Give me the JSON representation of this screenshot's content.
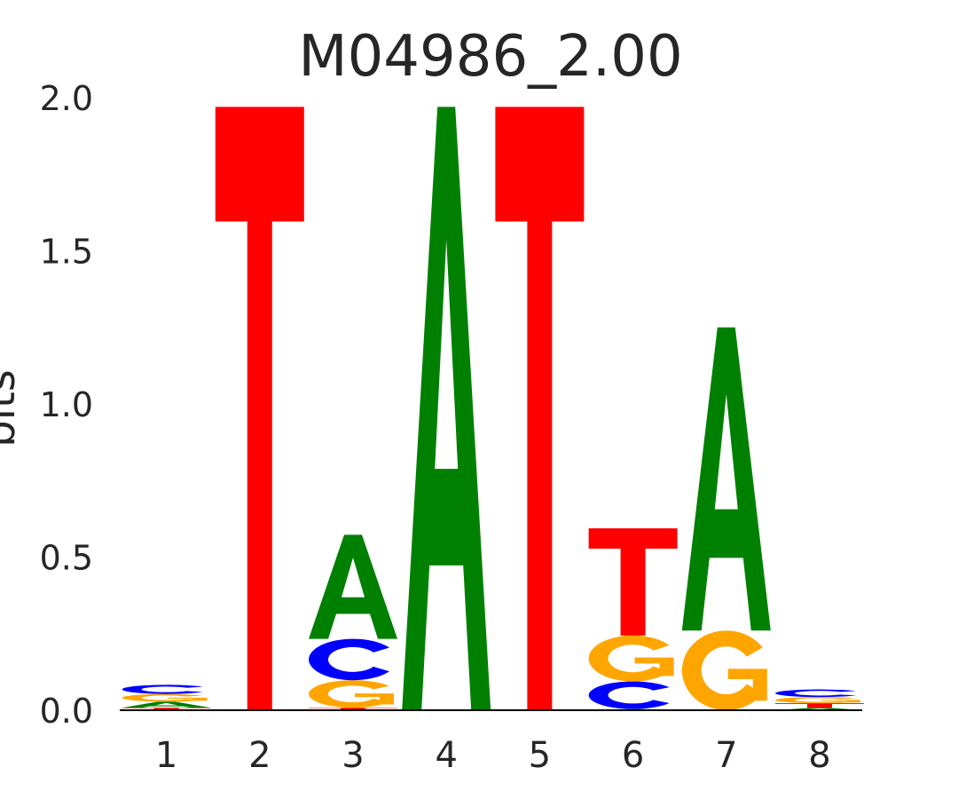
{
  "chart_data": {
    "type": "sequence-logo",
    "title": "M04986_2.00",
    "xlabel": "",
    "ylabel": "bits",
    "ylim": [
      0,
      2.0
    ],
    "yticks": [
      "0.0",
      "0.5",
      "1.0",
      "1.5",
      "2.0"
    ],
    "ytick_values": [
      0,
      0.5,
      1.0,
      1.5,
      2.0
    ],
    "xticks": [
      "1",
      "2",
      "3",
      "4",
      "5",
      "6",
      "7",
      "8"
    ],
    "colors": {
      "A": "#008000",
      "C": "#0000ff",
      "G": "#ffa500",
      "T": "#ff0000"
    },
    "positions": [
      {
        "pos": "1",
        "stack": [
          {
            "base": "T",
            "bits": 0.008
          },
          {
            "base": "A",
            "bits": 0.02
          },
          {
            "base": "G",
            "bits": 0.025
          },
          {
            "base": "C",
            "bits": 0.03
          }
        ]
      },
      {
        "pos": "2",
        "stack": [
          {
            "base": "T",
            "bits": 1.97
          }
        ]
      },
      {
        "pos": "3",
        "stack": [
          {
            "base": "T",
            "bits": 0.008
          },
          {
            "base": "G",
            "bits": 0.09
          },
          {
            "base": "C",
            "bits": 0.135
          },
          {
            "base": "A",
            "bits": 0.34
          }
        ]
      },
      {
        "pos": "4",
        "stack": [
          {
            "base": "A",
            "bits": 1.97
          }
        ]
      },
      {
        "pos": "5",
        "stack": [
          {
            "base": "T",
            "bits": 1.97
          }
        ]
      },
      {
        "pos": "6",
        "stack": [
          {
            "base": "A",
            "bits": 0.004
          },
          {
            "base": "C",
            "bits": 0.09
          },
          {
            "base": "G",
            "bits": 0.15
          },
          {
            "base": "T",
            "bits": 0.35
          }
        ]
      },
      {
        "pos": "7",
        "stack": [
          {
            "base": "G",
            "bits": 0.26
          },
          {
            "base": "A",
            "bits": 0.99
          }
        ]
      },
      {
        "pos": "8",
        "stack": [
          {
            "base": "A",
            "bits": 0.008
          },
          {
            "base": "T",
            "bits": 0.015
          },
          {
            "base": "G",
            "bits": 0.02
          },
          {
            "base": "C",
            "bits": 0.025
          }
        ]
      }
    ]
  }
}
